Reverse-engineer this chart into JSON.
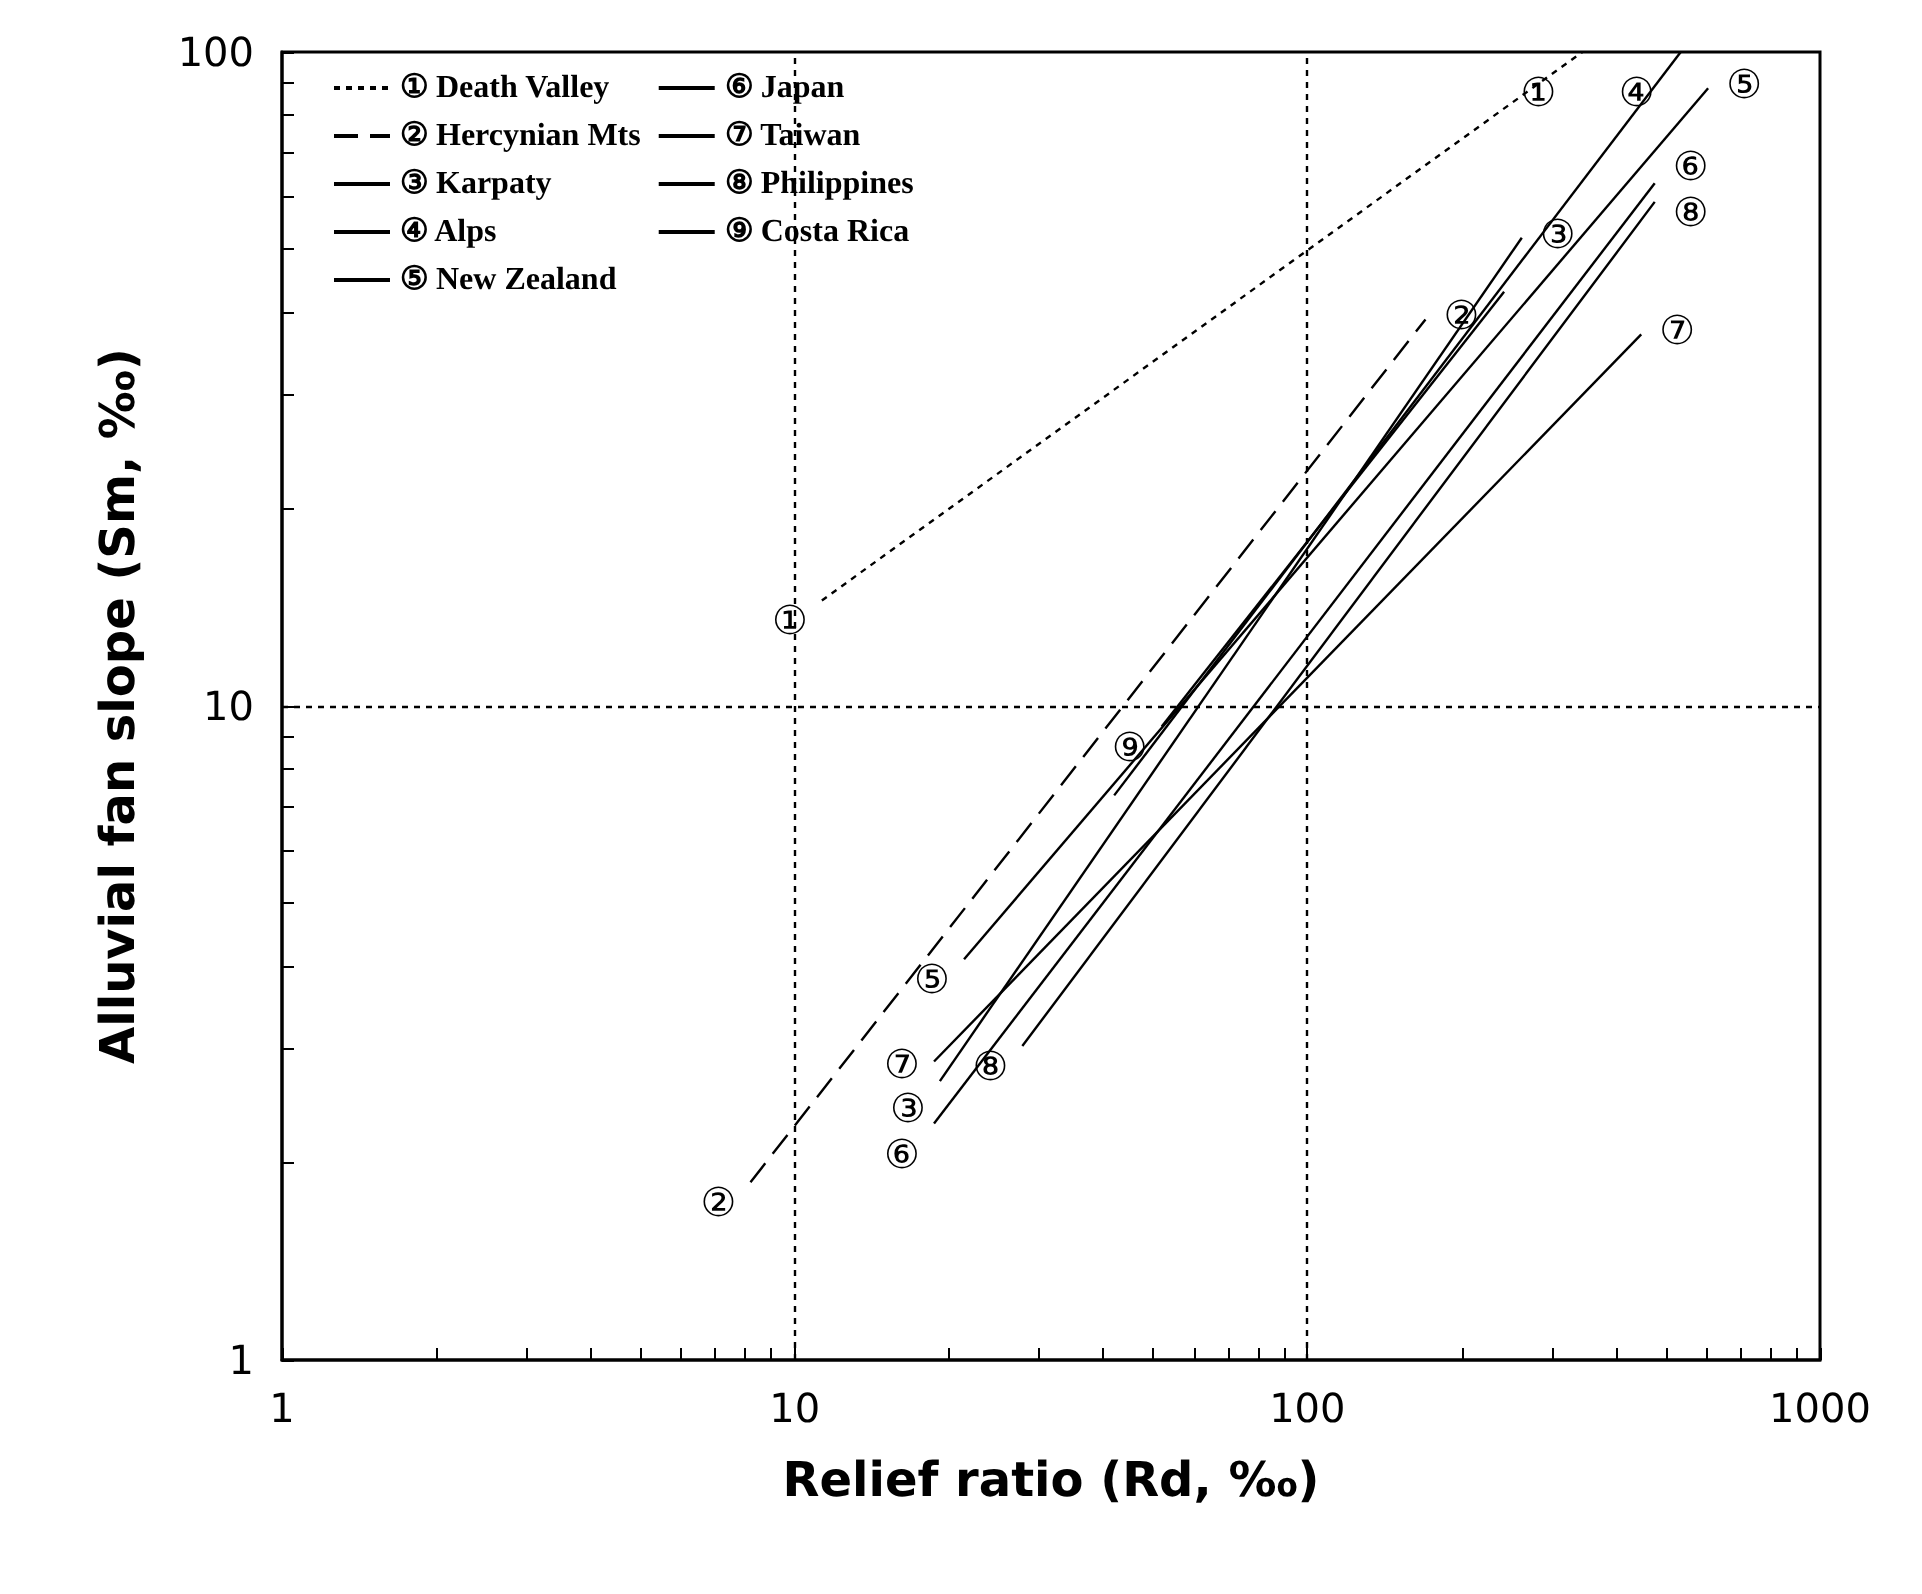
{
  "chart_data": {
    "type": "line",
    "xlabel": "Relief ratio (Rd, ‰)",
    "ylabel": "Alluvial fan slope (Sm, ‰)",
    "log": "xy",
    "xlim": [
      1,
      1000
    ],
    "ylim": [
      1,
      100
    ],
    "xticks": [
      1,
      {
        "value": 2,
        "label": null
      },
      {
        "value": 3,
        "label": null
      },
      {
        "value": 4,
        "label": null
      },
      {
        "value": 5,
        "label": null
      },
      {
        "value": 6,
        "label": null
      },
      {
        "value": 7,
        "label": null
      },
      {
        "value": 8,
        "label": null
      },
      {
        "value": 9,
        "label": null
      },
      10,
      {
        "value": 20,
        "label": null
      },
      {
        "value": 30,
        "label": null
      },
      {
        "value": 40,
        "label": null
      },
      {
        "value": 50,
        "label": null
      },
      {
        "value": 60,
        "label": null
      },
      {
        "value": 70,
        "label": null
      },
      {
        "value": 80,
        "label": null
      },
      {
        "value": 90,
        "label": null
      },
      100,
      {
        "value": 200,
        "label": null
      },
      {
        "value": 300,
        "label": null
      },
      {
        "value": 400,
        "label": null
      },
      {
        "value": 500,
        "label": null
      },
      {
        "value": 600,
        "label": null
      },
      {
        "value": 700,
        "label": null
      },
      {
        "value": 800,
        "label": null
      },
      {
        "value": 900,
        "label": null
      },
      1000
    ],
    "yticks": [
      1,
      {
        "value": 2,
        "label": null
      },
      {
        "value": 3,
        "label": null
      },
      {
        "value": 4,
        "label": null
      },
      {
        "value": 5,
        "label": null
      },
      {
        "value": 6,
        "label": null
      },
      {
        "value": 7,
        "label": null
      },
      {
        "value": 8,
        "label": null
      },
      {
        "value": 9,
        "label": null
      },
      10,
      {
        "value": 20,
        "label": null
      },
      {
        "value": 30,
        "label": null
      },
      {
        "value": 40,
        "label": null
      },
      {
        "value": 50,
        "label": null
      },
      {
        "value": 60,
        "label": null
      },
      {
        "value": 70,
        "label": null
      },
      {
        "value": 80,
        "label": null
      },
      {
        "value": 90,
        "label": null
      },
      100
    ],
    "legend": "top left",
    "marker": "none",
    "ref_lines": [
      {
        "axis": "x",
        "value": 10,
        "line_style": "dotted",
        "color": "#000000"
      },
      {
        "axis": "x",
        "value": 100,
        "line_style": "dotted",
        "color": "#000000"
      },
      {
        "axis": "y",
        "value": 10,
        "line_style": "dotted",
        "color": "#000000"
      }
    ],
    "series": [
      {
        "name": "① Death Valley",
        "color": "#000000",
        "line_style": "dotted",
        "x": [
          11.3,
          344
        ],
        "values": [
          14.5,
          100
        ]
      },
      {
        "name": "② Hercynian Mts",
        "color": "#000000",
        "line_style": "dashed",
        "x": [
          8.2,
          170
        ],
        "values": [
          1.87,
          39
        ]
      },
      {
        "name": "③ Karpaty",
        "color": "#000000",
        "line_style": "solid",
        "x": [
          19.2,
          262
        ],
        "values": [
          2.67,
          52
        ]
      },
      {
        "name": "④ Alps",
        "color": "#000000",
        "line_style": "solid",
        "x": [
          42,
          535
        ],
        "values": [
          7.3,
          100
        ]
      },
      {
        "name": "⑤ New Zealand",
        "color": "#000000",
        "line_style": "solid",
        "x": [
          21.4,
          605
        ],
        "values": [
          4.1,
          88
        ]
      },
      {
        "name": "⑥ Japan",
        "color": "#000000",
        "line_style": "solid",
        "x": [
          18.7,
          476
        ],
        "values": [
          2.3,
          63
        ]
      },
      {
        "name": "⑦ Taiwan",
        "color": "#000000",
        "line_style": "solid",
        "x": [
          18.7,
          448
        ],
        "values": [
          2.86,
          37
        ]
      },
      {
        "name": "⑧ Philippines",
        "color": "#000000",
        "line_style": "solid",
        "x": [
          27.8,
          476
        ],
        "values": [
          3.02,
          59
        ]
      },
      {
        "name": "⑨ Costa Rica",
        "color": "#000000",
        "line_style": "solid",
        "x": [
          52,
          242
        ],
        "values": [
          9.3,
          43
        ]
      }
    ],
    "annotations": [
      {
        "text": "①",
        "x": 11.3,
        "y": 14.5
      },
      {
        "text": "①",
        "x": 344,
        "y": 100
      },
      {
        "text": "②",
        "x": 8.2,
        "y": 1.87
      },
      {
        "text": "②",
        "x": 170,
        "y": 39
      },
      {
        "text": "③",
        "x": 19.2,
        "y": 2.67
      },
      {
        "text": "③",
        "x": 262,
        "y": 52
      },
      {
        "text": "④",
        "x": 535,
        "y": 100
      },
      {
        "text": "⑤",
        "x": 21.4,
        "y": 4.1
      },
      {
        "text": "⑤",
        "x": 605,
        "y": 88
      },
      {
        "text": "⑥",
        "x": 18.7,
        "y": 2.3
      },
      {
        "text": "⑥",
        "x": 476,
        "y": 63
      },
      {
        "text": "⑦",
        "x": 18.7,
        "y": 2.86
      },
      {
        "text": "⑦",
        "x": 448,
        "y": 37
      },
      {
        "text": "⑧",
        "x": 27.8,
        "y": 3.02
      },
      {
        "text": "⑧",
        "x": 476,
        "y": 59
      },
      {
        "text": "⑨",
        "x": 52,
        "y": 9.3
      }
    ]
  }
}
